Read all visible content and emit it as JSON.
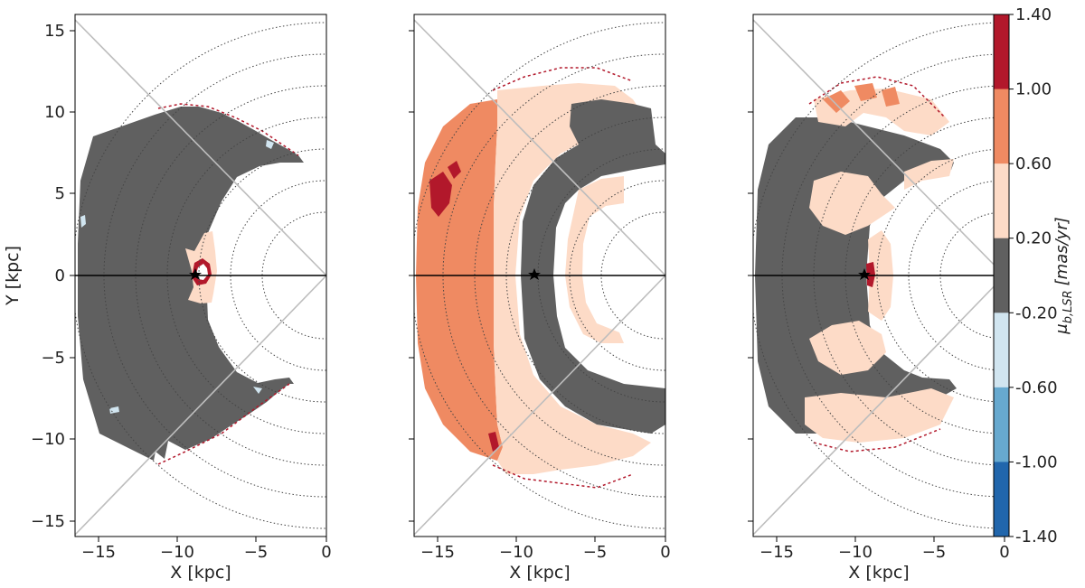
{
  "chart_data": [
    {
      "type": "heatmap",
      "panel": "left",
      "xlabel": "X [kpc]",
      "ylabel": "Y [kpc]",
      "xlim": [
        -16,
        0
      ],
      "ylim": [
        -16,
        16
      ],
      "xticks": [
        -15,
        -10,
        -5,
        0
      ],
      "xtick_labels": [
        "−15",
        "−10",
        "−5",
        "0"
      ],
      "yticks": [
        15,
        10,
        5,
        0,
        -5,
        -10,
        -15
      ],
      "ytick_labels": [
        "15",
        "10",
        "5",
        "0",
        "−5",
        "−10",
        "−15"
      ],
      "sun": [
        -8.3,
        0
      ],
      "annulus_kpc": [
        4,
        16
      ],
      "dominant_bin": "-0.20 to 0.20",
      "central_feature": {
        "x": [
          -8.5,
          -7.0
        ],
        "y": [
          -2.2,
          2.5
        ],
        "bin": "0.20 to 0.60"
      }
    },
    {
      "type": "heatmap",
      "panel": "middle",
      "xlabel": "X [kpc]",
      "ylabel": "",
      "xlim": [
        -16,
        0
      ],
      "ylim": [
        -16,
        16
      ],
      "xticks": [
        -15,
        -10,
        -5,
        0
      ],
      "xtick_labels": [
        "−15",
        "−10",
        "−5",
        "0"
      ],
      "sun": [
        -8.3,
        0
      ],
      "radial_bands": [
        {
          "r": [
            4.2,
            6.0
          ],
          "bin": "0.20 to 0.60"
        },
        {
          "r": [
            6.0,
            9.5
          ],
          "bin": "-0.20 to 0.20"
        },
        {
          "r": [
            9.5,
            12.5
          ],
          "bin": "0.20 to 0.60"
        },
        {
          "r": [
            12.5,
            16.0
          ],
          "bin": "0.60 to 1.00"
        }
      ]
    },
    {
      "type": "heatmap",
      "panel": "right",
      "xlabel": "X [kpc]",
      "ylabel": "",
      "xlim": [
        -16,
        0
      ],
      "ylim": [
        -16,
        16
      ],
      "xticks": [
        -15,
        -10,
        -5,
        0
      ],
      "xtick_labels": [
        "−15",
        "−10",
        "−5",
        "0"
      ],
      "sun": [
        -8.3,
        0
      ],
      "dominant_bin": "-0.20 to 0.20",
      "secondary_bin": "0.20 to 0.60",
      "upper_patch_bin": "0.60 to 1.00"
    }
  ],
  "colorbar": {
    "label_parts": {
      "symbol": "μ",
      "subscript": "b,LSR",
      "unit": "[mas/yr]"
    },
    "tick_labels": [
      "1.40",
      "1.00",
      "0.60",
      "0.20",
      "-0.20",
      "-0.60",
      "-1.00",
      "-1.40"
    ],
    "boundaries": [
      1.4,
      1.0,
      0.6,
      0.2,
      -0.2,
      -0.6,
      -1.0,
      -1.4
    ],
    "colors": [
      "#b2182b",
      "#ef8a62",
      "#fddbc7",
      "#606060",
      "#d1e5f0",
      "#67a9cf",
      "#2166ac"
    ]
  }
}
